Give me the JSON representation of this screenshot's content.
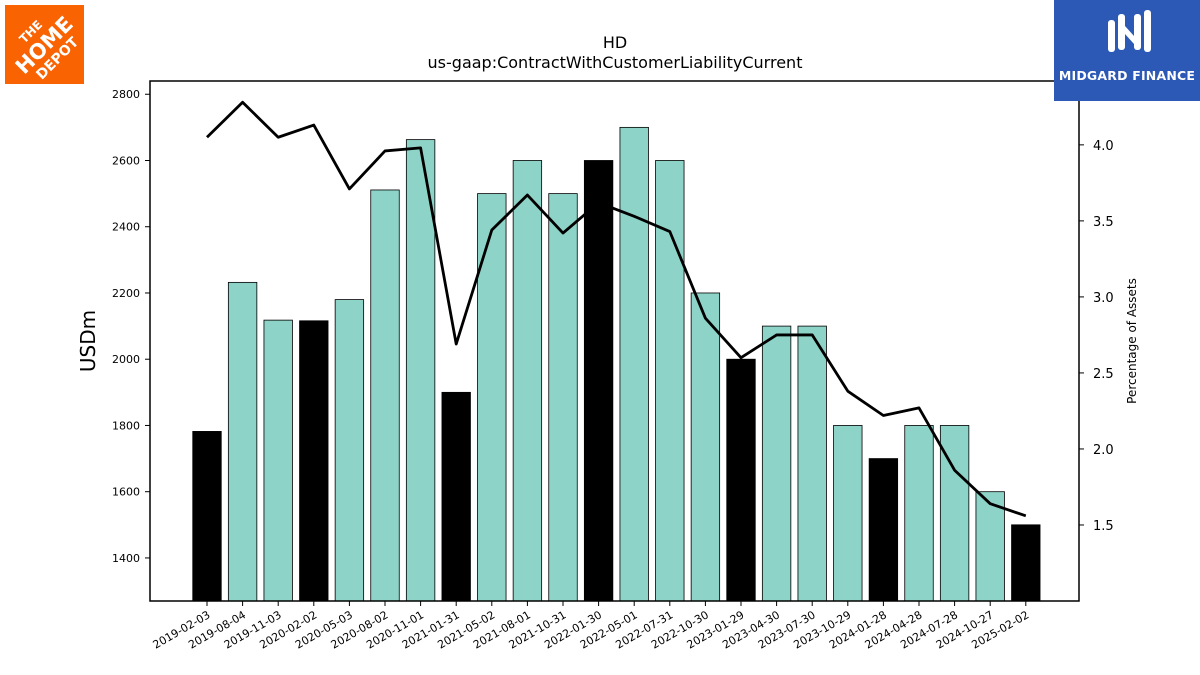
{
  "logos": {
    "left": {
      "text_lines": [
        "THE",
        "HOME",
        "DEPOT"
      ],
      "color": "#f96302"
    },
    "right": {
      "text": "MIDGARD FINANCE",
      "color": "#2b59b5"
    }
  },
  "chart_data": {
    "type": "bar",
    "title": "HD",
    "subtitle": "us-gaap:ContractWithCustomerLiabilityCurrent",
    "ylabel": "USDm",
    "y2label": "Percentage of Assets",
    "ylim": [
      1270,
      2840
    ],
    "y2lim": [
      1.0,
      4.42
    ],
    "y_ticks": [
      1400,
      1600,
      1800,
      2000,
      2200,
      2400,
      2600,
      2800
    ],
    "y2_ticks": [
      "1.5",
      "2.0",
      "2.5",
      "3.0",
      "3.5",
      "4.0"
    ],
    "categories": [
      "2019-02-03",
      "2019-08-04",
      "2019-11-03",
      "2020-02-02",
      "2020-05-03",
      "2020-08-02",
      "2020-11-01",
      "2021-01-31",
      "2021-05-02",
      "2021-08-01",
      "2021-10-31",
      "2022-01-30",
      "2022-05-01",
      "2022-07-31",
      "2022-10-30",
      "2023-01-29",
      "2023-04-30",
      "2023-07-30",
      "2023-10-29",
      "2024-01-28",
      "2024-04-28",
      "2024-07-28",
      "2024-10-27",
      "2025-02-02"
    ],
    "values": [
      1782,
      2232,
      2118,
      2116,
      2180,
      2511,
      2663,
      1900,
      2500,
      2600,
      2500,
      2600,
      2700,
      2600,
      2200,
      2000,
      2100,
      2100,
      1800,
      1700,
      1800,
      1800,
      1600,
      1500
    ],
    "highlight": [
      true,
      false,
      false,
      true,
      false,
      false,
      false,
      true,
      false,
      false,
      false,
      true,
      false,
      false,
      false,
      true,
      false,
      false,
      false,
      true,
      false,
      false,
      false,
      true
    ],
    "line_values": [
      4.05,
      4.28,
      4.05,
      4.13,
      3.71,
      3.96,
      3.98,
      2.69,
      3.44,
      3.67,
      3.42,
      3.62,
      3.53,
      3.43,
      2.86,
      2.6,
      2.75,
      2.75,
      2.38,
      2.22,
      2.27,
      1.86,
      1.64,
      1.56
    ],
    "colors": {
      "bar": "#8dd3c7",
      "highlight_bar": "#000000",
      "line": "#000000"
    }
  }
}
